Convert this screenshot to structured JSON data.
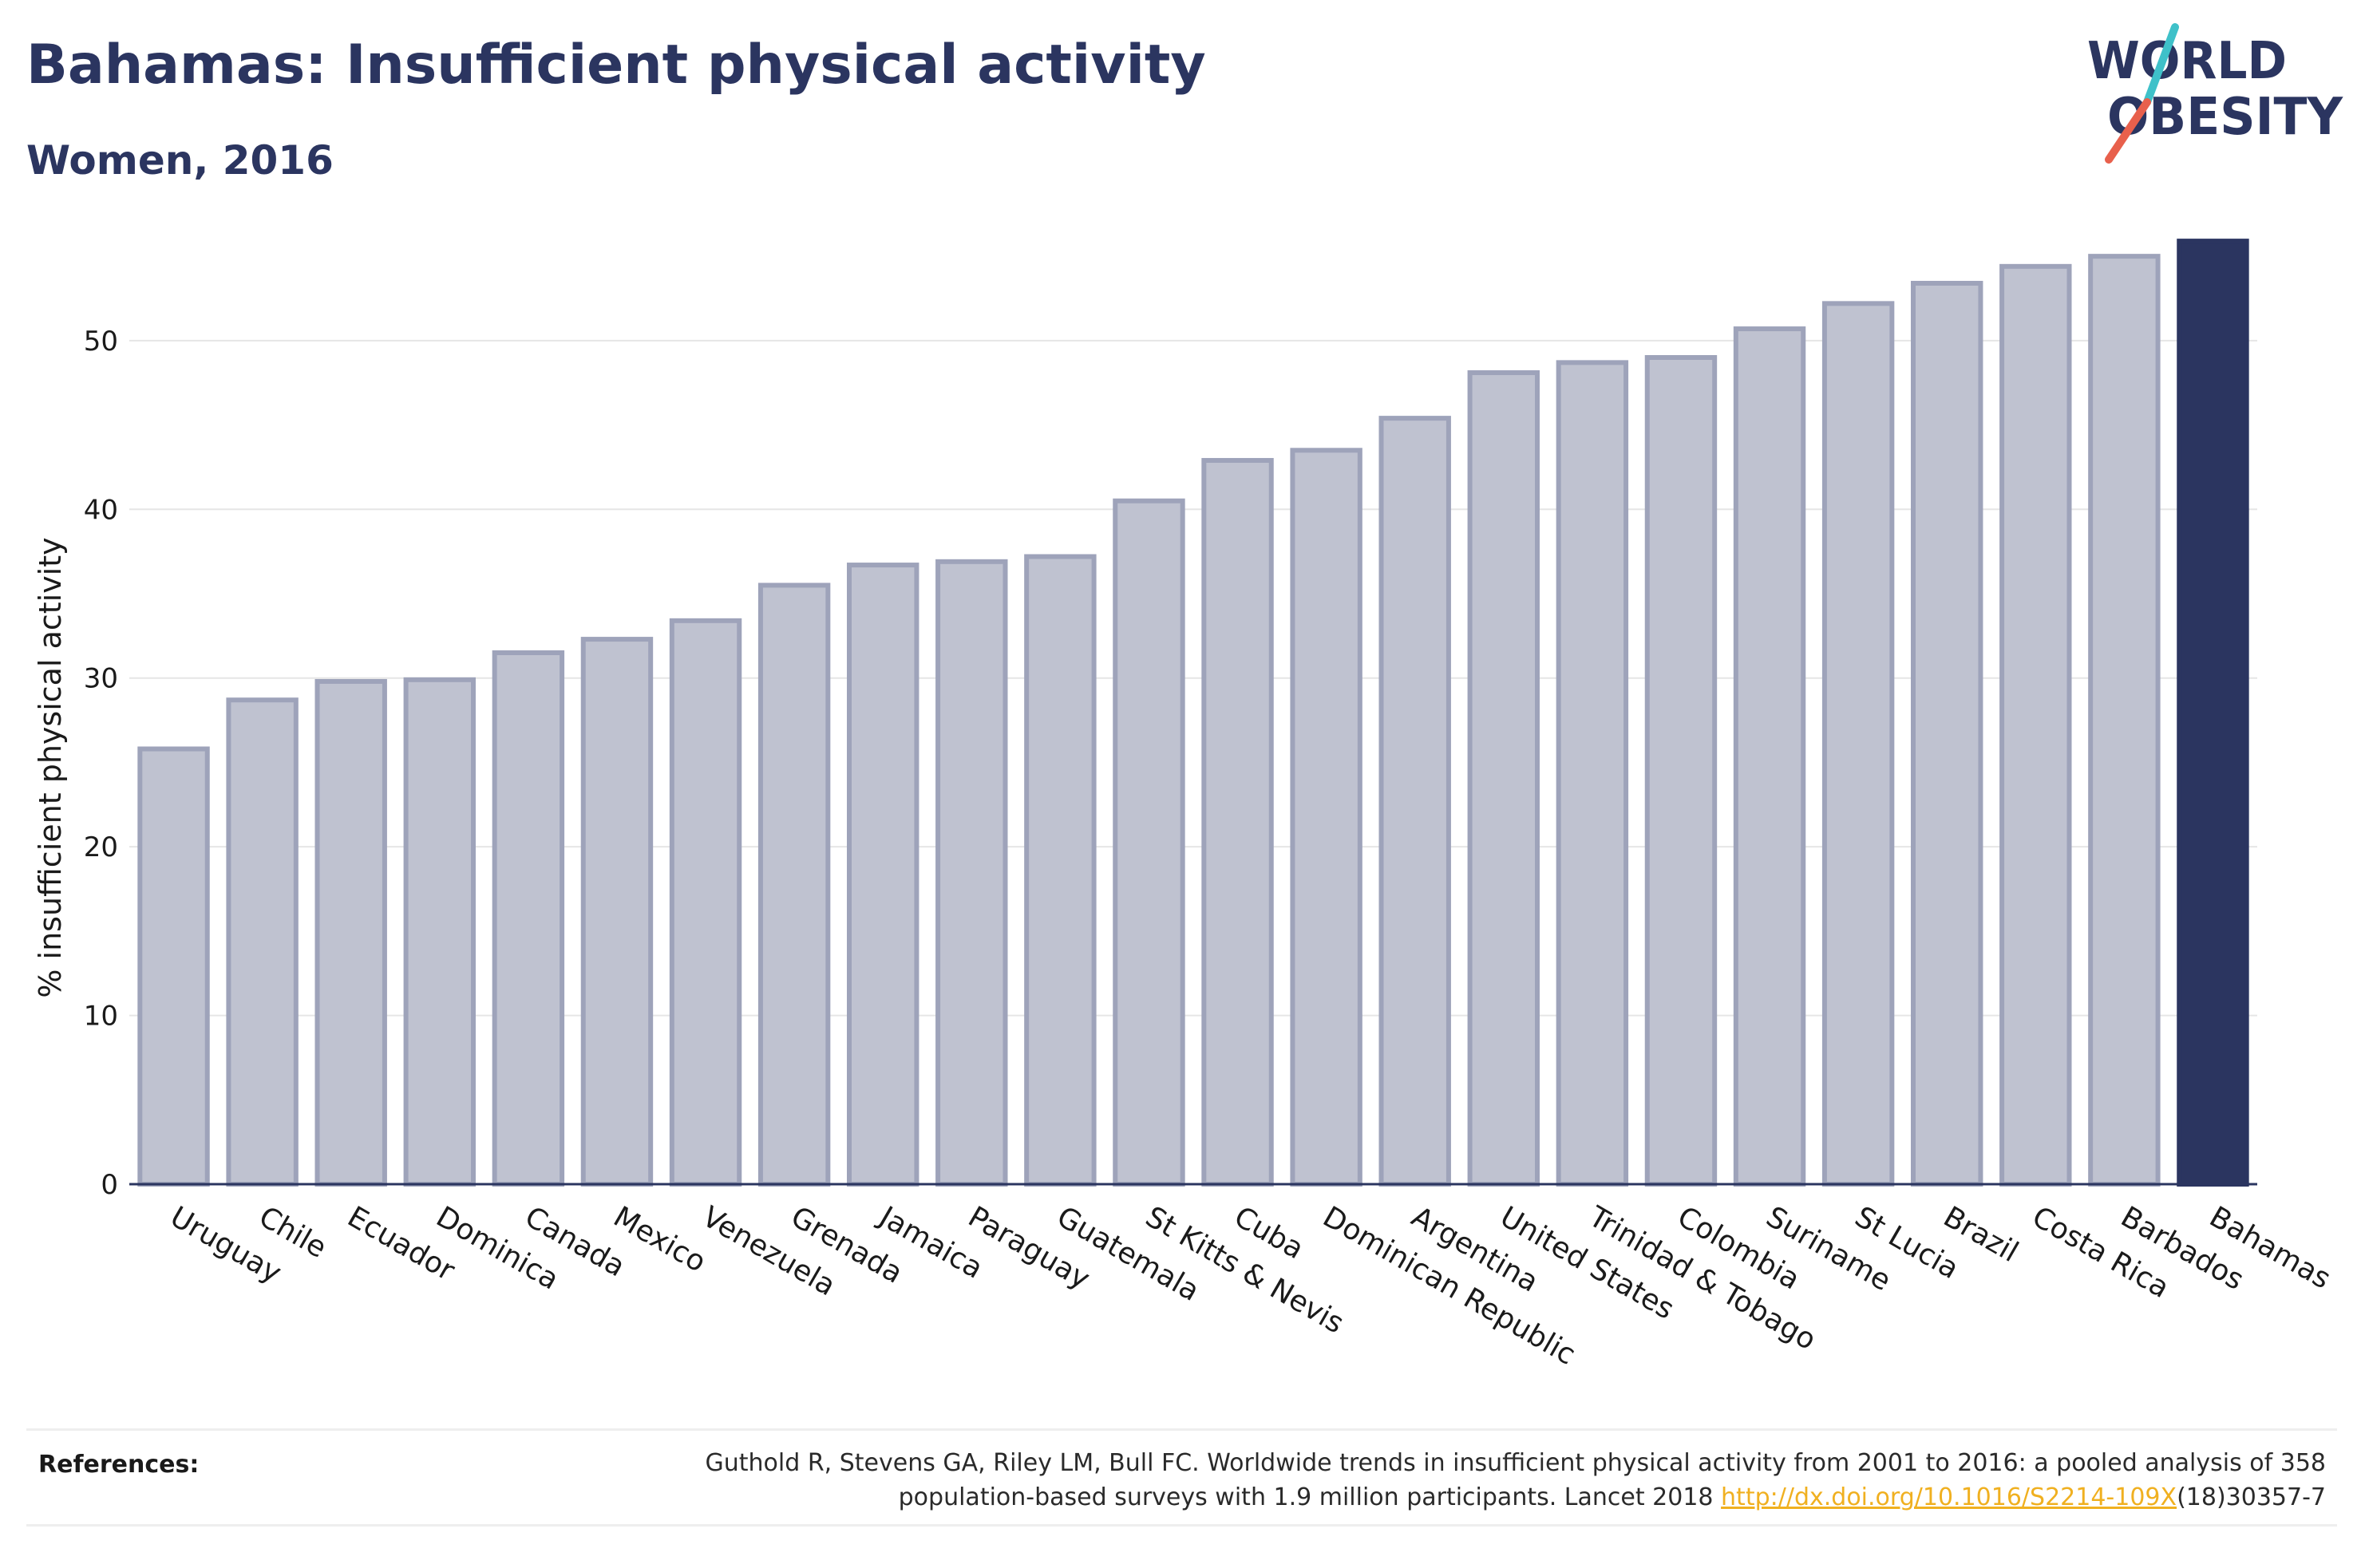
{
  "header": {
    "title": "Bahamas: Insufficient physical activity",
    "subtitle": "Women, 2016"
  },
  "logo": {
    "line1": "WORLD",
    "line2": "OBESITY",
    "colors": {
      "text": "#2b3560",
      "slash_teal": "#3fc1c9",
      "slash_coral": "#e8604c"
    }
  },
  "colors": {
    "bar_fill": "#bfc2d0",
    "bar_stroke": "#9ea3ba",
    "highlight": "#2b3560",
    "grid": "#e6e6e6",
    "axis": "#2b3560"
  },
  "chart_data": {
    "type": "bar",
    "title": "Bahamas: Insufficient physical activity",
    "subtitle": "Women, 2016",
    "xlabel": "",
    "ylabel": "% insufficient physical activity",
    "ylim": [
      0,
      56
    ],
    "yticks": [
      0,
      10,
      20,
      30,
      40,
      50
    ],
    "grid": true,
    "highlight": "Bahamas",
    "categories": [
      "Uruguay",
      "Chile",
      "Ecuador",
      "Dominica",
      "Canada",
      "Mexico",
      "Venezuela",
      "Grenada",
      "Jamaica",
      "Paraguay",
      "Guatemala",
      "St Kitts & Nevis",
      "Cuba",
      "Dominican Republic",
      "Argentina",
      "United States",
      "Trinidad & Tobago",
      "Colombia",
      "Suriname",
      "St Lucia",
      "Brazil",
      "Costa Rica",
      "Barbados",
      "Bahamas"
    ],
    "values": [
      25.8,
      28.7,
      29.8,
      29.9,
      31.5,
      32.3,
      33.4,
      35.5,
      36.7,
      36.9,
      37.2,
      40.5,
      42.9,
      43.5,
      45.4,
      48.1,
      48.7,
      49.0,
      50.7,
      52.2,
      53.4,
      54.4,
      55.0,
      55.9
    ]
  },
  "references": {
    "label": "References:",
    "line1": "Guthold R, Stevens GA, Riley LM, Bull FC. Worldwide trends in insufficient physical activity from 2001 to 2016: a pooled analysis of 358",
    "line2_pre": "population-based surveys with 1.9 million participants. Lancet 2018 ",
    "link": "http://dx.doi.org/10.1016/S2214-109X",
    "line2_post": "(18)30357-7"
  }
}
